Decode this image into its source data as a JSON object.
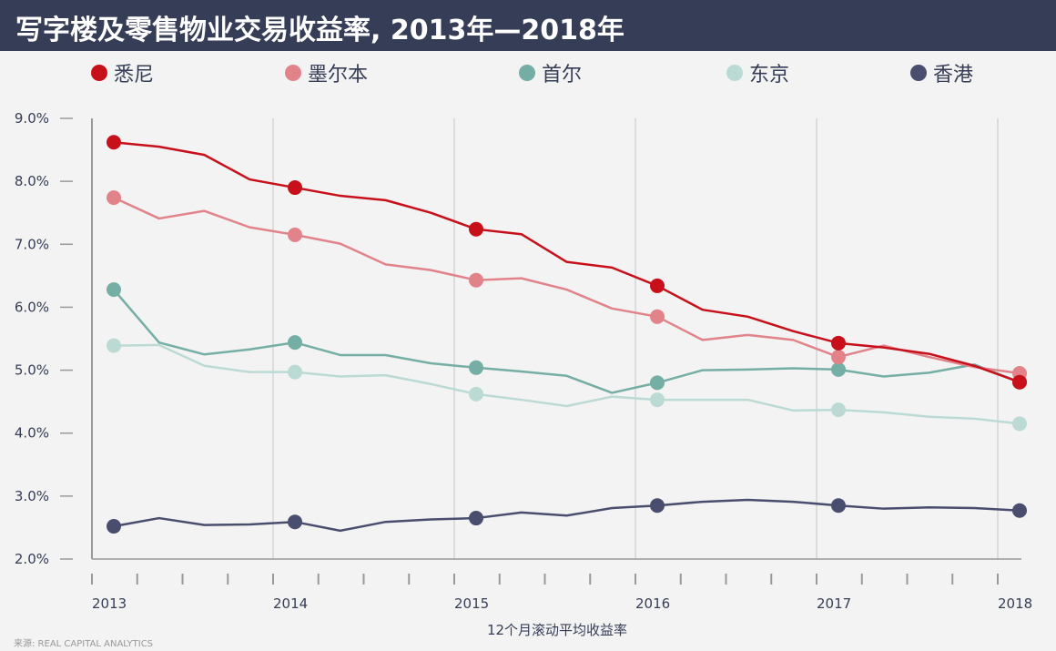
{
  "title": "写字楼及零售物业交易收益率, 2013年—2018年",
  "source": "来源: REAL CAPITAL ANALYTICS",
  "chart_data": {
    "type": "line",
    "title": "写字楼及零售物业交易收益率, 2013年—2018年",
    "xlabel": "12个月滚动平均收益率",
    "ylabel": "",
    "x_ticks": [
      "2013",
      "2014",
      "2015",
      "2016",
      "2017",
      "2018"
    ],
    "y_ticks": [
      "2.0%",
      "3.0%",
      "4.0%",
      "5.0%",
      "6.0%",
      "7.0%",
      "8.0%",
      "9.0%"
    ],
    "ylim": [
      2.0,
      9.0
    ],
    "x_unit": "quarter",
    "x_start": 2013,
    "grid": "vertical at years",
    "legend_position": "top",
    "series": [
      {
        "name": "悉尼",
        "color": "#c8101a",
        "values": [
          8.62,
          8.55,
          8.42,
          8.03,
          7.9,
          7.77,
          7.7,
          7.5,
          7.24,
          7.16,
          6.72,
          6.63,
          6.34,
          5.96,
          5.85,
          5.62,
          5.43,
          5.36,
          5.26,
          5.07,
          4.81
        ]
      },
      {
        "name": "墨尔本",
        "color": "#e2838a",
        "values": [
          7.74,
          7.41,
          7.53,
          7.27,
          7.15,
          7.01,
          6.68,
          6.59,
          6.43,
          6.46,
          6.28,
          5.98,
          5.85,
          5.48,
          5.56,
          5.48,
          5.21,
          5.39,
          5.21,
          5.05,
          4.95
        ]
      },
      {
        "name": "首尔",
        "color": "#75aea5",
        "values": [
          6.28,
          5.44,
          5.25,
          5.33,
          5.44,
          5.24,
          5.24,
          5.11,
          5.04,
          4.98,
          4.91,
          4.64,
          4.8,
          5.0,
          5.01,
          5.03,
          5.01,
          4.9,
          4.96,
          5.09,
          4.81
        ]
      },
      {
        "name": "东京",
        "color": "#bcdad4",
        "values": [
          5.39,
          5.4,
          5.07,
          4.97,
          4.97,
          4.9,
          4.92,
          4.78,
          4.62,
          4.53,
          4.43,
          4.58,
          4.53,
          4.53,
          4.53,
          4.36,
          4.37,
          4.33,
          4.26,
          4.23,
          4.15
        ]
      },
      {
        "name": "香港",
        "color": "#4a4e6e",
        "values": [
          2.52,
          2.65,
          2.54,
          2.55,
          2.59,
          2.45,
          2.59,
          2.63,
          2.65,
          2.74,
          2.69,
          2.81,
          2.85,
          2.91,
          2.94,
          2.91,
          2.85,
          2.8,
          2.82,
          2.81,
          2.77
        ]
      }
    ]
  }
}
